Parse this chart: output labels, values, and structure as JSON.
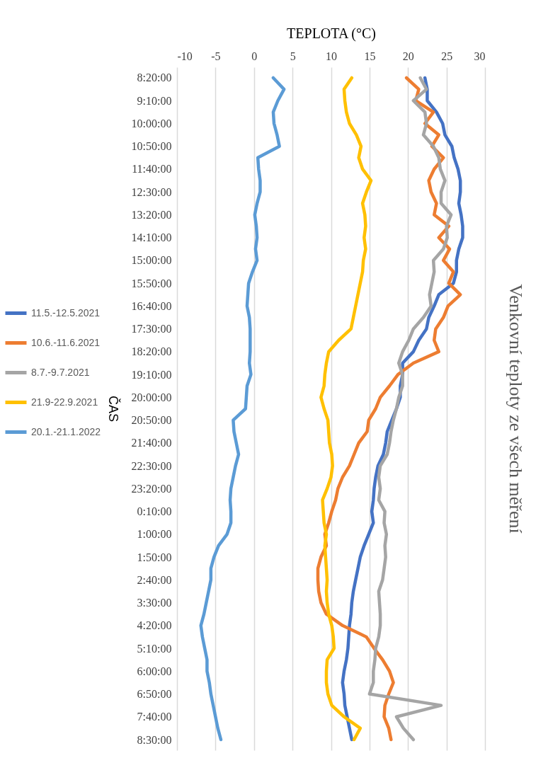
{
  "chart_data": {
    "type": "line",
    "orientation": "horizontal",
    "title": "Venkovní teploty ze všech měření",
    "xlabel": "TEPLOTA (°C)",
    "ylabel": "ČAS",
    "categories": [
      "8:20:00",
      null,
      "9:10:00",
      null,
      "10:00:00",
      null,
      "10:50:00",
      null,
      "11:40:00",
      null,
      "12:30:00",
      null,
      "13:20:00",
      null,
      "14:10:00",
      null,
      "15:00:00",
      null,
      "15:50:00",
      null,
      "16:40:00",
      null,
      "17:30:00",
      null,
      "18:20:00",
      null,
      "19:10:00",
      null,
      "20:00:00",
      null,
      "20:50:00",
      null,
      "21:40:00",
      null,
      "22:30:00",
      null,
      "23:20:00",
      null,
      "0:10:00",
      null,
      "1:00:00",
      null,
      "1:50:00",
      null,
      "2:40:00",
      null,
      "3:30:00",
      null,
      "4:20:00",
      null,
      "5:10:00",
      null,
      "6:00:00",
      null,
      "6:50:00",
      null,
      "7:40:00",
      null,
      "8:30:00"
    ],
    "series": [
      {
        "name": "11.5.-12.5.2021",
        "color": "#4472c4",
        "values": [
          22.2,
          22.5,
          22.5,
          23.7,
          24.5,
          24.8,
          25.7,
          26.0,
          26.5,
          26.8,
          26.8,
          26.6,
          26.9,
          27.1,
          27.1,
          26.6,
          26.3,
          26.3,
          25.9,
          24.0,
          23.4,
          22.7,
          22.4,
          21.4,
          20.7,
          19.3,
          19.3,
          19.0,
          19.0,
          18.5,
          17.9,
          17.3,
          17.1,
          16.8,
          16.1,
          15.8,
          15.6,
          15.5,
          15.3,
          15.5,
          14.9,
          14.3,
          13.8,
          13.5,
          13.2,
          12.9,
          12.7,
          12.6,
          12.4,
          12.3,
          12.2,
          12.0,
          11.7,
          11.5,
          11.7,
          11.8,
          12.1,
          12.4,
          12.7
        ]
      },
      {
        "name": "10.6.-11.6.2021",
        "color": "#ed7d31",
        "values": [
          19.8,
          21.4,
          21.0,
          23.3,
          22.2,
          24.0,
          23.1,
          24.6,
          23.4,
          22.7,
          23.0,
          23.7,
          23.4,
          25.3,
          24.0,
          25.4,
          24.6,
          25.9,
          25.3,
          26.8,
          25.2,
          24.6,
          23.6,
          23.4,
          24.0,
          20.7,
          18.7,
          17.6,
          16.4,
          15.8,
          14.9,
          14.7,
          13.6,
          13.0,
          12.4,
          11.5,
          10.9,
          10.6,
          10.1,
          9.7,
          9.2,
          9.4,
          8.7,
          8.3,
          8.3,
          8.4,
          8.7,
          9.4,
          11.5,
          14.6,
          15.6,
          16.7,
          17.6,
          18.1,
          17.5,
          17.0,
          16.9,
          17.5,
          17.8
        ]
      },
      {
        "name": "8.7.-9.7.2021",
        "color": "#a5a5a5",
        "values": [
          21.6,
          22.4,
          20.7,
          22.2,
          22.4,
          22.0,
          23.3,
          24.0,
          24.2,
          24.8,
          24.3,
          24.3,
          25.6,
          25.0,
          25.1,
          24.6,
          23.3,
          23.4,
          23.1,
          22.8,
          23.0,
          22.0,
          20.7,
          20.1,
          19.3,
          18.8,
          19.3,
          19.3,
          18.8,
          18.5,
          18.1,
          17.8,
          17.6,
          17.3,
          16.4,
          16.2,
          16.4,
          16.2,
          17.0,
          16.9,
          17.2,
          17.0,
          17.1,
          16.9,
          16.7,
          16.2,
          16.3,
          16.4,
          16.4,
          16.2,
          15.8,
          15.7,
          15.5,
          15.5,
          15.0,
          24.3,
          18.5,
          19.4,
          20.7
        ]
      },
      {
        "name": "21.9-22.9.2021",
        "color": "#ffc000",
        "values": [
          12.7,
          11.7,
          11.8,
          12.0,
          12.4,
          13.3,
          13.9,
          13.6,
          14.1,
          15.2,
          14.6,
          14.1,
          14.4,
          14.5,
          14.3,
          14.5,
          14.2,
          14.1,
          13.8,
          13.5,
          13.2,
          12.9,
          12.6,
          11.0,
          9.7,
          9.4,
          9.2,
          9.1,
          8.7,
          9.1,
          9.6,
          9.7,
          9.8,
          10.1,
          10.2,
          10.0,
          9.5,
          8.9,
          9.0,
          9.1,
          9.4,
          9.2,
          9.3,
          9.4,
          9.5,
          9.4,
          9.5,
          9.7,
          10.1,
          10.3,
          10.4,
          9.5,
          9.4,
          9.4,
          9.6,
          10.1,
          11.7,
          13.8,
          13.0
        ]
      },
      {
        "name": "20.1.-21.1.2022",
        "color": "#5b9bd5",
        "values": [
          2.5,
          3.9,
          3.1,
          2.5,
          2.6,
          3.0,
          3.3,
          0.5,
          0.6,
          0.8,
          0.8,
          0.4,
          0.1,
          0.3,
          0.4,
          0.2,
          0.4,
          -0.2,
          -0.7,
          -0.8,
          -0.9,
          -0.6,
          -0.5,
          -0.5,
          -0.5,
          -0.6,
          -0.4,
          -0.9,
          -1.0,
          -1.1,
          -2.7,
          -2.6,
          -2.3,
          -2.0,
          -2.4,
          -2.7,
          -3.0,
          -3.1,
          -3.0,
          -3.0,
          -3.5,
          -4.6,
          -5.2,
          -5.6,
          -5.6,
          -5.9,
          -6.2,
          -6.5,
          -6.9,
          -6.7,
          -6.4,
          -6.1,
          -6.1,
          -5.8,
          -5.6,
          -5.3,
          -5.0,
          -4.7,
          -4.3
        ]
      }
    ],
    "xlim": [
      -10,
      30
    ],
    "xticks": [
      -10,
      -5,
      0,
      5,
      10,
      15,
      20,
      25,
      30
    ],
    "grid": "x",
    "legend": "left"
  }
}
